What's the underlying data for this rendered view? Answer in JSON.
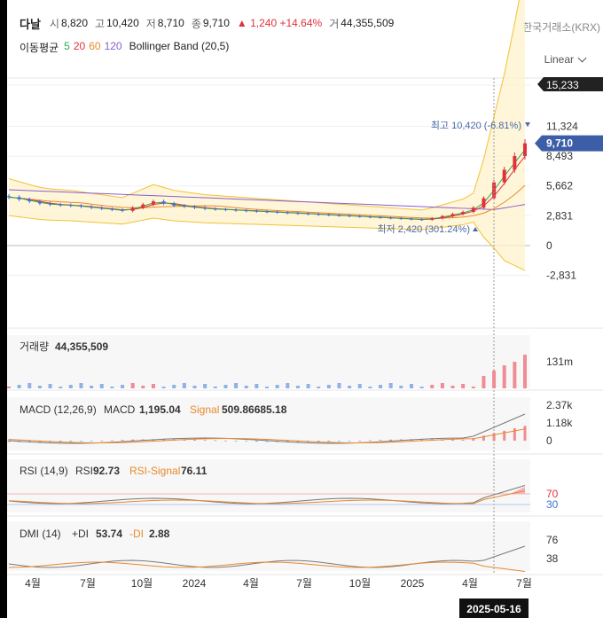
{
  "header": {
    "name": "다날",
    "open_label": "시",
    "open": "8,820",
    "high_label": "고",
    "high": "10,420",
    "low_label": "저",
    "low": "8,710",
    "close_label": "종",
    "close": "9,710",
    "change": "▲ 1,240 +14.64%",
    "volume_label": "거",
    "volume": "44,355,509",
    "exchange": "한국거래소(KRX)"
  },
  "indicators": {
    "ma_label": "이동평균",
    "ma5": "5",
    "ma20": "20",
    "ma60": "60",
    "ma120": "120",
    "bb": "Bollinger Band (20,5)",
    "colors": {
      "ma5": "#2eaa4a",
      "ma20": "#e0323c",
      "ma60": "#e8892c",
      "ma120": "#8a5fd1"
    }
  },
  "scale_label": "Linear",
  "chart_data": [
    {
      "type": "candlestick",
      "name": "price",
      "y_ticks": [
        "15,233",
        "11,324",
        "8,493",
        "5,662",
        "2,831",
        "0",
        "-2,831"
      ],
      "tick_values": [
        15233,
        11324,
        8493,
        5662,
        2831,
        0,
        -2831
      ],
      "current_price": "9,710",
      "current_value": 9710,
      "max_label": "최고 10,420 (-6.81%)",
      "min_label": "최저 2,420 (301.24%)",
      "x_labels": [
        "4월",
        "7월",
        "10월",
        "2024",
        "4월",
        "7월",
        "10월",
        "2025",
        "4월",
        "7월"
      ],
      "crosshair_date": "2025-05-16",
      "close_series": [
        4600,
        4400,
        4200,
        4000,
        3900,
        3850,
        3800,
        3700,
        3600,
        3500,
        3400,
        3300,
        3600,
        3900,
        4200,
        4000,
        3800,
        3700,
        3600,
        3500,
        3450,
        3400,
        3350,
        3300,
        3250,
        3200,
        3150,
        3100,
        3050,
        3000,
        2950,
        2900,
        2850,
        2800,
        2750,
        2700,
        2650,
        2600,
        2550,
        2500,
        2450,
        2600,
        2800,
        3000,
        3200,
        3600,
        4500,
        6000,
        7200,
        8500,
        9710
      ],
      "colors": {
        "up": "#e0323c",
        "down": "#3b73d6",
        "band": "#f1c232"
      }
    },
    {
      "type": "bar",
      "name": "volume",
      "label": "거래량",
      "value": "44,355,509",
      "y_ticks": [
        "131m"
      ]
    },
    {
      "type": "line",
      "name": "MACD",
      "label": "MACD (12,26,9)",
      "macd_label": "MACD",
      "macd_value": "1,195.04",
      "signal_label": "Signal",
      "signal_value": "509.86685.18",
      "y_ticks": [
        "2.37k",
        "1.18k",
        "0"
      ]
    },
    {
      "type": "line",
      "name": "RSI",
      "label": "RSI (14,9)",
      "rsi_label": "RSI",
      "rsi_value": "92.73",
      "signal_label": "RSI-Signal",
      "signal_value": "76.11",
      "y_ticks": [
        "70",
        "30"
      ]
    },
    {
      "type": "line",
      "name": "DMI",
      "label": "DMI (14)",
      "pdi_label": "+DI",
      "pdi_value": "53.74",
      "mdi_label": "-DI",
      "mdi_value": "2.88",
      "y_ticks": [
        "76",
        "38"
      ]
    }
  ]
}
